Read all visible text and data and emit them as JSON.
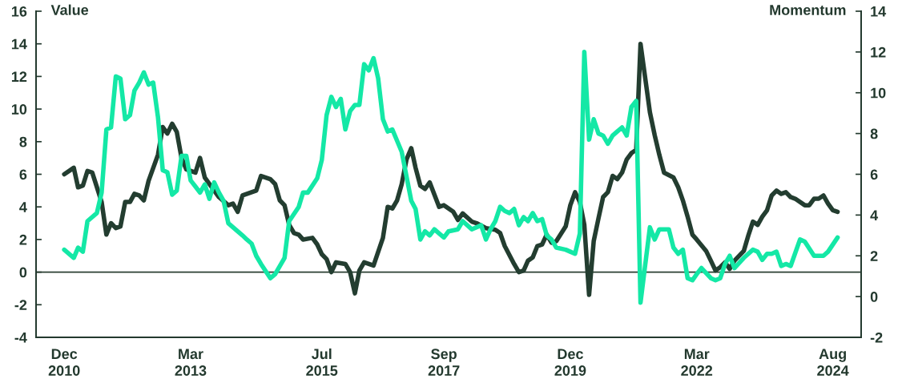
{
  "chart_data": {
    "type": "line",
    "ylabel": "Value",
    "y2label": "Momentum",
    "xlim": [
      "2010-06",
      "2025-02"
    ],
    "xticks": [
      {
        "value": "2010-12",
        "label": "Dec\n2010"
      },
      {
        "value": "2013-03",
        "label": "Mar\n2013"
      },
      {
        "value": "2015-07",
        "label": "Jul\n2015"
      },
      {
        "value": "2017-09",
        "label": "Sep\n2017"
      },
      {
        "value": "2019-12",
        "label": "Dec\n2019"
      },
      {
        "value": "2022-03",
        "label": "Mar\n2022"
      },
      {
        "value": "2024-08",
        "label": "Aug\n2024"
      }
    ],
    "ylim": [
      -4,
      16
    ],
    "yticks": [
      -4,
      -2,
      0,
      2,
      4,
      6,
      8,
      10,
      12,
      14,
      16
    ],
    "y2lim": [
      -2,
      14
    ],
    "y2ticks": [
      -2,
      0,
      2,
      4,
      6,
      8,
      10,
      12,
      14
    ],
    "ref_lines": [
      {
        "axis": "y",
        "value": 0,
        "color": "#2a3f33"
      }
    ],
    "series": [
      {
        "color": "#233d30",
        "x": [
          "2010-12",
          "2011-02",
          "2011-03",
          "2011-04",
          "2011-05",
          "2011-06",
          "2011-08",
          "2011-09",
          "2011-10",
          "2011-11",
          "2011-12",
          "2012-01",
          "2012-02",
          "2012-03",
          "2012-04",
          "2012-05",
          "2012-06",
          "2012-08",
          "2012-09",
          "2012-10",
          "2012-11",
          "2012-12",
          "2013-01",
          "2013-02",
          "2013-04",
          "2013-05",
          "2013-06",
          "2013-07",
          "2013-09",
          "2013-11",
          "2013-12",
          "2014-01",
          "2014-02",
          "2014-04",
          "2014-05",
          "2014-06",
          "2014-08",
          "2014-09",
          "2014-10",
          "2014-11",
          "2014-12",
          "2015-01",
          "2015-02",
          "2015-03",
          "2015-05",
          "2015-06",
          "2015-07",
          "2015-08",
          "2015-09",
          "2015-10",
          "2015-12",
          "2016-01",
          "2016-02",
          "2016-03",
          "2016-04",
          "2016-06",
          "2016-08",
          "2016-09",
          "2016-10",
          "2016-11",
          "2016-12",
          "2017-01",
          "2017-02",
          "2017-03",
          "2017-04",
          "2017-05",
          "2017-06",
          "2017-08",
          "2017-09",
          "2017-11",
          "2017-12",
          "2018-01",
          "2018-03",
          "2018-04",
          "2018-06",
          "2018-08",
          "2018-09",
          "2018-10",
          "2018-12",
          "2019-01",
          "2019-02",
          "2019-03",
          "2019-04",
          "2019-05",
          "2019-06",
          "2019-07",
          "2019-08",
          "2019-09",
          "2019-11",
          "2019-12",
          "2020-01",
          "2020-02",
          "2020-03",
          "2020-04",
          "2020-05",
          "2020-06",
          "2020-07",
          "2020-08",
          "2020-09",
          "2020-10",
          "2020-11",
          "2020-12",
          "2021-01",
          "2021-02",
          "2021-03",
          "2021-05",
          "2021-06",
          "2021-07",
          "2021-08",
          "2021-10",
          "2021-11",
          "2021-12",
          "2022-01",
          "2022-02",
          "2022-03",
          "2022-05",
          "2022-06",
          "2022-07",
          "2022-08",
          "2022-09",
          "2022-10",
          "2022-11",
          "2023-01",
          "2023-02",
          "2023-03",
          "2023-04",
          "2023-05",
          "2023-06",
          "2023-07",
          "2023-08",
          "2023-09",
          "2023-10",
          "2023-11",
          "2023-12",
          "2024-02",
          "2024-03",
          "2024-04",
          "2024-05",
          "2024-06",
          "2024-07",
          "2024-08",
          "2024-09"
        ],
        "values": [
          6.0,
          6.4,
          5.2,
          5.3,
          6.2,
          6.1,
          4.3,
          2.3,
          3.0,
          2.7,
          2.8,
          4.3,
          4.3,
          4.8,
          4.7,
          4.4,
          5.6,
          7.2,
          8.9,
          8.5,
          9.1,
          8.6,
          7.0,
          6.3,
          6.1,
          7.0,
          5.8,
          5.4,
          4.6,
          4.1,
          4.2,
          3.7,
          4.7,
          4.9,
          5.0,
          5.9,
          5.7,
          5.4,
          4.4,
          4.1,
          2.9,
          2.4,
          2.3,
          2.0,
          2.1,
          1.7,
          1.1,
          0.8,
          0.0,
          0.6,
          0.5,
          0.0,
          -1.3,
          0.1,
          0.6,
          0.4,
          2.1,
          4.0,
          3.9,
          4.4,
          5.4,
          6.9,
          7.6,
          6.4,
          5.3,
          5.1,
          5.5,
          4.0,
          4.1,
          3.7,
          3.2,
          3.6,
          3.1,
          3.0,
          2.7,
          2.6,
          2.4,
          1.6,
          0.5,
          0.0,
          0.1,
          0.7,
          0.9,
          1.6,
          1.7,
          2.3,
          1.8,
          1.9,
          2.8,
          4.1,
          4.9,
          4.3,
          2.9,
          -1.4,
          1.9,
          3.3,
          4.6,
          4.9,
          5.9,
          5.7,
          6.1,
          6.9,
          7.3,
          7.5,
          14.0,
          9.8,
          8.4,
          7.2,
          6.1,
          5.8,
          5.2,
          4.4,
          3.4,
          2.3,
          2.0,
          1.3,
          0.7,
          0.1,
          0.3,
          0.6,
          0.2,
          0.7,
          1.3,
          2.3,
          3.1,
          2.9,
          3.4,
          3.8,
          4.7,
          5.0,
          4.8,
          4.9,
          4.6,
          4.5,
          4.1,
          4.1,
          4.5,
          4.5,
          4.7,
          4.2,
          3.8,
          3.7
        ]
      },
      {
        "color": "#14e8a6",
        "axis": "y2",
        "x": [
          "2010-12",
          "2011-02",
          "2011-03",
          "2011-04",
          "2011-05",
          "2011-07",
          "2011-08",
          "2011-09",
          "2011-10",
          "2011-11",
          "2011-12",
          "2012-01",
          "2012-02",
          "2012-03",
          "2012-04",
          "2012-05",
          "2012-06",
          "2012-07",
          "2012-08",
          "2012-09",
          "2012-10",
          "2012-11",
          "2012-12",
          "2013-01",
          "2013-02",
          "2013-03",
          "2013-04",
          "2013-05",
          "2013-06",
          "2013-07",
          "2013-08",
          "2013-09",
          "2013-10",
          "2013-11",
          "2013-12",
          "2014-02",
          "2014-03",
          "2014-04",
          "2014-05",
          "2014-06",
          "2014-08",
          "2014-09",
          "2014-11",
          "2014-12",
          "2015-02",
          "2015-03",
          "2015-04",
          "2015-06",
          "2015-07",
          "2015-08",
          "2015-09",
          "2015-10",
          "2015-11",
          "2015-12",
          "2016-01",
          "2016-02",
          "2016-03",
          "2016-04",
          "2016-05",
          "2016-06",
          "2016-07",
          "2016-08",
          "2016-09",
          "2016-10",
          "2016-12",
          "2017-01",
          "2017-02",
          "2017-03",
          "2017-04",
          "2017-05",
          "2017-06",
          "2017-07",
          "2017-08",
          "2017-09",
          "2017-10",
          "2017-12",
          "2018-01",
          "2018-03",
          "2018-05",
          "2018-06",
          "2018-07",
          "2018-08",
          "2018-09",
          "2018-10",
          "2018-11",
          "2018-12",
          "2019-01",
          "2019-02",
          "2019-03",
          "2019-04",
          "2019-05",
          "2019-06",
          "2019-07",
          "2019-08",
          "2019-09",
          "2019-11",
          "2019-12",
          "2020-01",
          "2020-02",
          "2020-03",
          "2020-04",
          "2020-05",
          "2020-06",
          "2020-07",
          "2020-08",
          "2020-09",
          "2020-10",
          "2020-11",
          "2020-12",
          "2021-01",
          "2021-02",
          "2021-03",
          "2021-05",
          "2021-06",
          "2021-07",
          "2021-08",
          "2021-09",
          "2021-10",
          "2021-11",
          "2021-12",
          "2022-01",
          "2022-02",
          "2022-03",
          "2022-04",
          "2022-06",
          "2022-07",
          "2022-08",
          "2022-09",
          "2022-10",
          "2022-11",
          "2023-01",
          "2023-03",
          "2023-04",
          "2023-05",
          "2023-06",
          "2023-07",
          "2023-08",
          "2023-09",
          "2023-10",
          "2023-11",
          "2024-01",
          "2024-02",
          "2024-04",
          "2024-05",
          "2024-06",
          "2024-07",
          "2024-09"
        ],
        "values": [
          2.3,
          1.9,
          2.4,
          2.2,
          3.7,
          4.1,
          5.1,
          8.2,
          8.3,
          10.8,
          10.7,
          8.7,
          8.9,
          10.1,
          10.5,
          11.0,
          10.4,
          10.5,
          8.8,
          6.2,
          6.1,
          5.0,
          5.2,
          6.9,
          6.9,
          5.7,
          5.4,
          5.1,
          5.5,
          4.8,
          5.6,
          5.1,
          4.7,
          3.6,
          3.4,
          3.0,
          2.8,
          2.6,
          2.0,
          1.6,
          0.9,
          1.1,
          1.9,
          3.7,
          4.4,
          5.1,
          5.1,
          5.8,
          6.7,
          8.9,
          9.8,
          9.3,
          9.7,
          8.2,
          9.1,
          9.4,
          9.4,
          11.4,
          11.1,
          11.7,
          10.7,
          8.7,
          8.1,
          8.2,
          7.1,
          5.9,
          4.7,
          4.3,
          2.8,
          3.2,
          3.0,
          3.3,
          3.1,
          2.9,
          3.2,
          3.3,
          3.7,
          3.3,
          3.5,
          2.8,
          3.3,
          3.7,
          4.4,
          4.2,
          4.1,
          4.3,
          3.5,
          3.9,
          3.7,
          4.1,
          3.7,
          3.8,
          3.0,
          2.8,
          2.4,
          2.3,
          2.2,
          2.1,
          3.1,
          12.0,
          7.7,
          8.7,
          8.0,
          7.9,
          7.5,
          7.9,
          8.1,
          8.3,
          7.9,
          9.3,
          9.6,
          -0.3,
          3.4,
          2.8,
          3.3,
          3.3,
          3.3,
          2.4,
          2.1,
          2.3,
          0.9,
          0.8,
          1.1,
          1.4,
          0.9,
          0.8,
          0.9,
          1.6,
          2.0,
          1.4,
          1.9,
          2.3,
          2.2,
          1.8,
          2.1,
          2.1,
          2.2,
          1.5,
          1.6,
          1.5,
          2.8,
          2.7,
          2.0,
          2.0,
          2.0,
          2.2,
          2.9
        ]
      }
    ]
  }
}
